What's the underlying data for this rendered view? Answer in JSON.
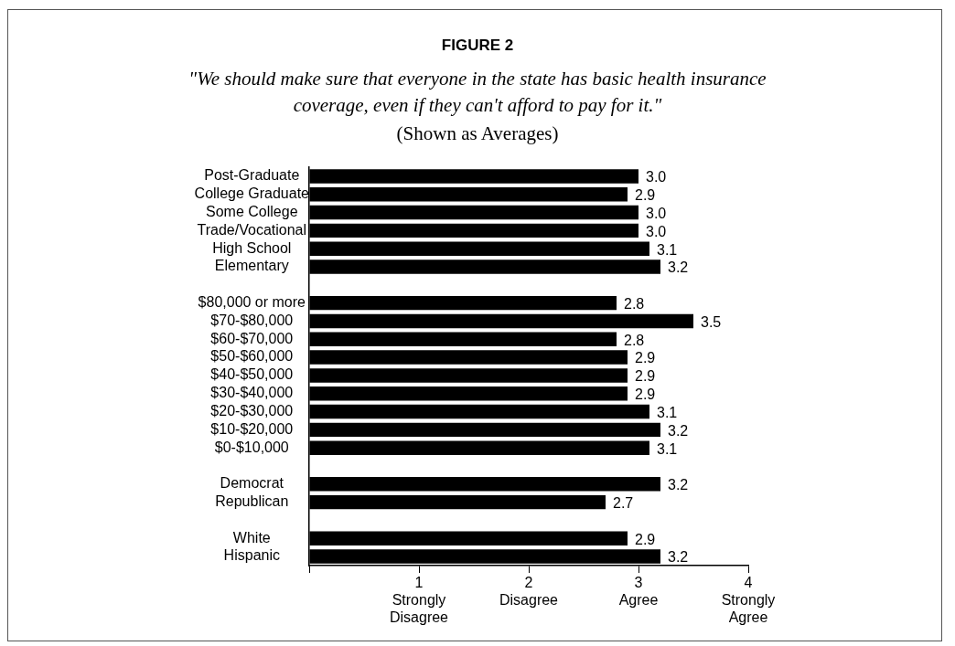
{
  "chart_data": {
    "type": "bar",
    "orientation": "horizontal",
    "title": "FIGURE 2",
    "subtitle": "\"We should make sure that everyone in the state has basic health insurance coverage, even if they can't afford to pay for it.\"",
    "annotations": [
      "(Shown as Averages)"
    ],
    "categories": [
      "Post-Graduate",
      "College Graduate",
      "Some College",
      "Trade/Vocational",
      "High School",
      "Elementary",
      null,
      "$80,000 or more",
      "$70-$80,000",
      "$60-$70,000",
      "$50-$60,000",
      "$40-$50,000",
      "$30-$40,000",
      "$20-$30,000",
      "$10-$20,000",
      "$0-$10,000",
      null,
      "Democrat",
      "Republican",
      null,
      "White",
      "Hispanic"
    ],
    "values": [
      3.0,
      2.9,
      3.0,
      3.0,
      3.1,
      3.2,
      null,
      2.8,
      3.5,
      2.8,
      2.9,
      2.9,
      2.9,
      3.1,
      3.2,
      3.1,
      null,
      3.2,
      2.7,
      null,
      2.9,
      3.2
    ],
    "value_labels": [
      "3.0",
      "2.9",
      "3.0",
      "3.0",
      "3.1",
      "3.2",
      null,
      "2.8",
      "3.5",
      "2.8",
      "2.9",
      "2.9",
      "2.9",
      "3.1",
      "3.2",
      "3.1",
      null,
      "3.2",
      "2.7",
      null,
      "2.9",
      "3.2"
    ],
    "color": "#000000",
    "xlim": [
      0,
      4
    ],
    "xticks": [
      {
        "value": 0,
        "label": null
      },
      {
        "value": 1,
        "label": "1\nStrongly\nDisagree"
      },
      {
        "value": 2,
        "label": "2\nDisagree"
      },
      {
        "value": 3,
        "label": "3\nAgree"
      },
      {
        "value": 4,
        "label": "4\nStrongly\nAgree"
      }
    ],
    "grid": false,
    "legend": false
  }
}
